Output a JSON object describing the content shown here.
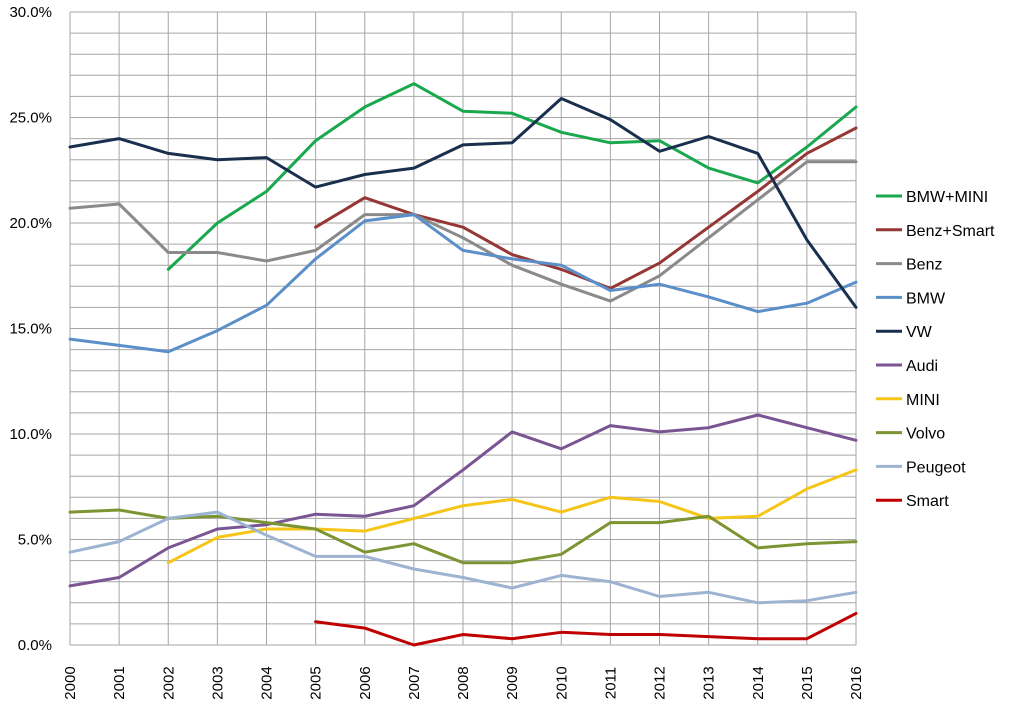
{
  "chart_data": {
    "type": "line",
    "title": "",
    "xlabel": "",
    "ylabel": "",
    "ylim": [
      0,
      30
    ],
    "ytick_labels": [
      "0.0%",
      "5.0%",
      "10.0%",
      "15.0%",
      "20.0%",
      "25.0%",
      "30.0%"
    ],
    "x": [
      2000,
      2001,
      2002,
      2003,
      2004,
      2005,
      2006,
      2007,
      2008,
      2009,
      2010,
      2011,
      2012,
      2013,
      2014,
      2015,
      2016
    ],
    "grid": true,
    "legend_position": "right",
    "series": [
      {
        "name": "BMW+MINI",
        "color": "#1aa84f",
        "values": [
          null,
          null,
          17.8,
          20.0,
          21.5,
          23.9,
          25.5,
          26.6,
          25.3,
          25.2,
          24.3,
          23.8,
          23.9,
          22.6,
          21.9,
          23.6,
          25.5
        ]
      },
      {
        "name": "Benz+Smart",
        "color": "#953735",
        "values": [
          null,
          null,
          null,
          null,
          null,
          19.8,
          21.2,
          20.4,
          19.8,
          18.5,
          17.8,
          16.9,
          18.1,
          19.8,
          21.5,
          23.3,
          24.5
        ]
      },
      {
        "name": "Benz",
        "color": "#8a8a8a",
        "values": [
          20.7,
          20.9,
          18.6,
          18.6,
          18.2,
          18.7,
          20.4,
          20.4,
          19.3,
          18.0,
          17.1,
          16.3,
          17.5,
          19.3,
          21.1,
          22.9,
          22.9
        ]
      },
      {
        "name": "BMW",
        "color": "#5b8fc9",
        "values": [
          14.5,
          14.2,
          13.9,
          14.9,
          16.1,
          18.3,
          20.1,
          20.4,
          18.7,
          18.3,
          18.0,
          16.8,
          17.1,
          16.5,
          15.8,
          16.2,
          17.2
        ]
      },
      {
        "name": "VW",
        "color": "#1a2f4e",
        "values": [
          23.6,
          24.0,
          23.3,
          23.0,
          23.1,
          21.7,
          22.3,
          22.6,
          23.7,
          23.8,
          25.9,
          24.9,
          23.4,
          24.1,
          23.3,
          19.2,
          16.0
        ]
      },
      {
        "name": "Audi",
        "color": "#7a5592",
        "values": [
          2.8,
          3.2,
          4.6,
          5.5,
          5.7,
          6.2,
          6.1,
          6.6,
          8.3,
          10.1,
          9.3,
          10.4,
          10.1,
          10.3,
          10.9,
          10.3,
          9.7
        ]
      },
      {
        "name": "MINI",
        "color": "#f5c518",
        "values": [
          null,
          null,
          3.9,
          5.1,
          5.5,
          5.5,
          5.4,
          6.0,
          6.6,
          6.9,
          6.3,
          7.0,
          6.8,
          6.0,
          6.1,
          7.4,
          8.3
        ]
      },
      {
        "name": "Volvo",
        "color": "#7d9432",
        "values": [
          6.3,
          6.4,
          6.0,
          6.1,
          5.8,
          5.5,
          4.4,
          4.8,
          3.9,
          3.9,
          4.3,
          5.8,
          5.8,
          6.1,
          4.6,
          4.8,
          4.9
        ]
      },
      {
        "name": "Peugeot",
        "color": "#9cb3d1",
        "values": [
          4.4,
          4.9,
          6.0,
          6.3,
          5.2,
          4.2,
          4.2,
          3.6,
          3.2,
          2.7,
          3.3,
          3.0,
          2.3,
          2.5,
          2.0,
          2.1,
          2.5
        ]
      },
      {
        "name": "Smart",
        "color": "#c00000",
        "values": [
          null,
          null,
          null,
          null,
          null,
          1.1,
          0.8,
          0.0,
          0.5,
          0.3,
          0.6,
          0.5,
          0.5,
          0.4,
          0.3,
          0.3,
          1.5
        ]
      }
    ]
  }
}
